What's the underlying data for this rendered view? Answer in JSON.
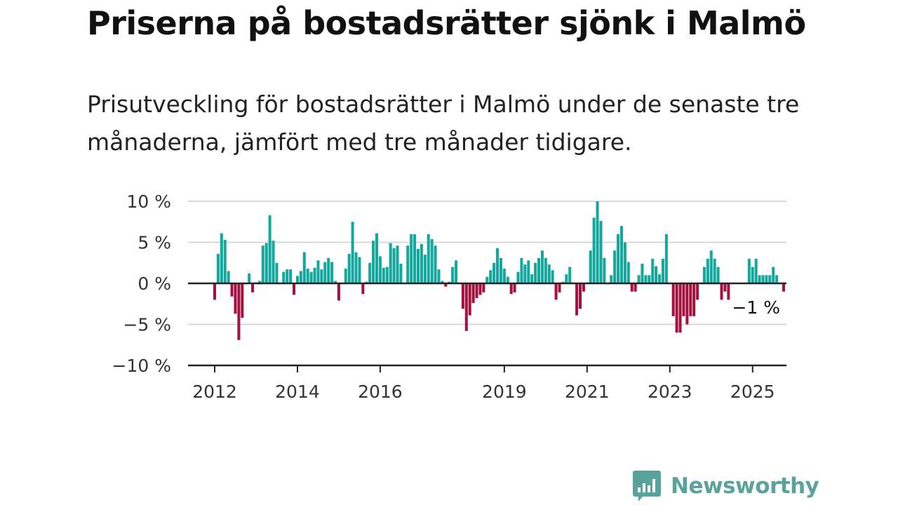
{
  "header": {
    "title": "Priserna på bostadsrätter sjönk i Malmö",
    "subtitle": "Prisutveckling för bostadsrätter i Malmö under de senaste tre månaderna, jämfört med tre månader tidigare."
  },
  "logo": {
    "text": "Newsworthy",
    "icon": "newsworthy-logo-icon",
    "color": "#5aa39c"
  },
  "colors": {
    "positive": "#13a89e",
    "negative": "#a4113f",
    "grid": "#d9d9d9",
    "axis": "#222222"
  },
  "chart_data": {
    "type": "bar",
    "title": "Priserna på bostadsrätter sjönk i Malmö",
    "subtitle": "Prisutveckling för bostadsrätter i Malmö under de senaste tre månaderna, jämfört med tre månader tidigare.",
    "xlabel": "",
    "ylabel": "",
    "ylim": [
      -10,
      10
    ],
    "yticks": [
      10,
      5,
      0,
      -5,
      -10
    ],
    "ytick_labels": [
      "10 %",
      "5 %",
      "0 %",
      "−5 %",
      "−10 %"
    ],
    "xticks": [
      2012,
      2014,
      2016,
      2019,
      2021,
      2023,
      2025
    ],
    "xtick_labels": [
      "2012",
      "2014",
      "2016",
      "2019",
      "2021",
      "2023",
      "2025"
    ],
    "grid": true,
    "legend": "none",
    "x_start": "2012-01",
    "x_unit": "month",
    "end_annotation": "−1 %",
    "values": [
      -2,
      3.6,
      6.1,
      5.3,
      1.5,
      -1.6,
      -3.7,
      -6.9,
      -4.2,
      -0.1,
      1.2,
      -1.1,
      0.1,
      0.3,
      4.6,
      4.9,
      8.3,
      5.2,
      2.5,
      0,
      1.4,
      1.7,
      1.7,
      -1.4,
      0.9,
      1.5,
      3.8,
      1.8,
      1.4,
      1.9,
      2.8,
      1.7,
      2.6,
      3.1,
      2.6,
      0.3,
      -2.1,
      0.1,
      1.8,
      3.6,
      7.5,
      3.8,
      3.2,
      -1.3,
      0.2,
      2.5,
      5.2,
      6.1,
      3.3,
      1.9,
      2,
      4.9,
      4.3,
      4.6,
      2.4,
      0,
      4.6,
      6,
      6,
      4.2,
      4.8,
      3.5,
      6,
      5.4,
      4.6,
      1.7,
      0.3,
      -0.4,
      0.2,
      2,
      2.8,
      0,
      -3.1,
      -5.8,
      -3.9,
      -2.4,
      -1.8,
      -1.4,
      -1.1,
      0.8,
      1.6,
      2.5,
      4.3,
      3.1,
      1.8,
      0.8,
      -1.3,
      -1.1,
      1.4,
      3.1,
      2.3,
      2.8,
      1.1,
      2.5,
      3.1,
      4,
      3.1,
      2.3,
      1.6,
      -2,
      -1.1,
      0.2,
      1.1,
      2,
      0,
      -3.9,
      -3.1,
      -1,
      0.1,
      4,
      8,
      10,
      7.6,
      3.1,
      0,
      1,
      4,
      6,
      7,
      5,
      2.6,
      -1,
      -1,
      1,
      2.4,
      1,
      1,
      3,
      2.1,
      1.1,
      3,
      6,
      0,
      -4,
      -6,
      -6,
      -4,
      -5,
      -4,
      -4,
      -2,
      0,
      2,
      3,
      4,
      3,
      2,
      -2,
      -1,
      -2,
      0,
      0,
      0,
      0,
      0,
      3,
      2,
      3,
      1,
      1,
      1,
      1,
      2,
      1,
      0,
      -1
    ]
  }
}
